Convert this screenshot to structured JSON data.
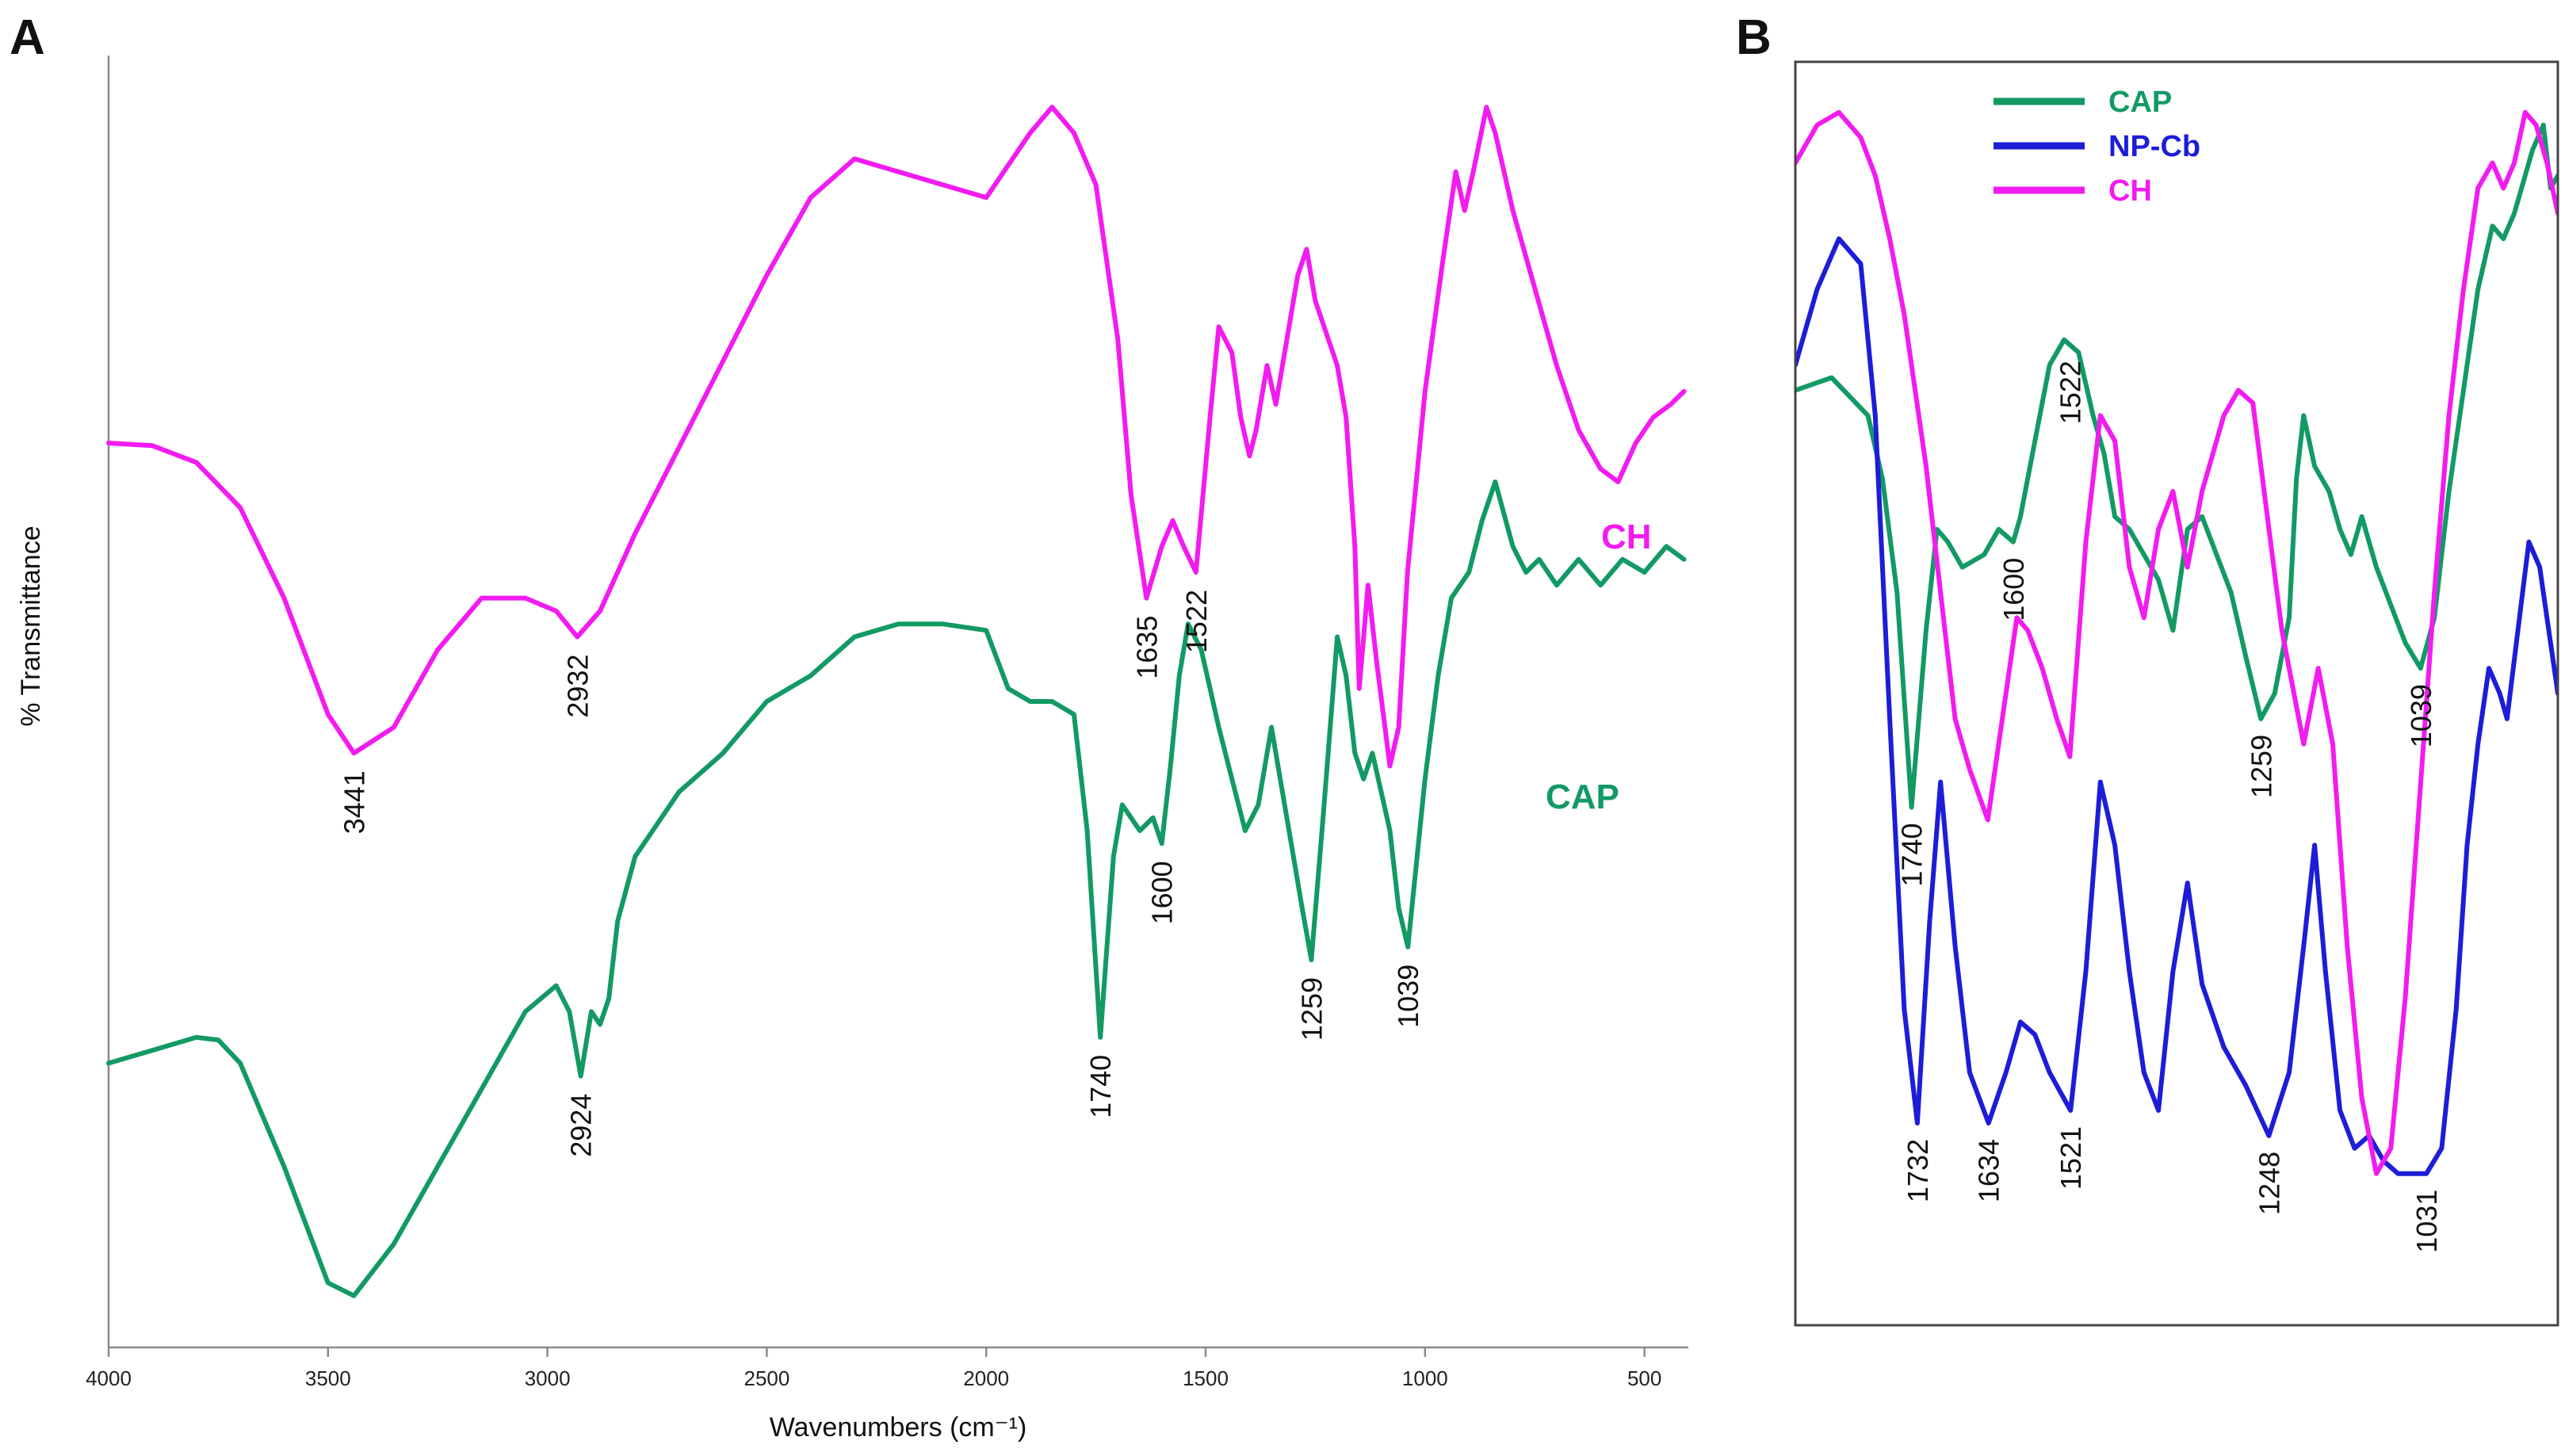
{
  "chart_data": [
    {
      "panel": "A",
      "type": "line",
      "title": "",
      "xlabel": "Wavenumbers (cm⁻¹)",
      "ylabel": "% Transmittance",
      "xlim": [
        4000,
        400
      ],
      "x_reversed": true,
      "xticks": [
        4000,
        3500,
        3000,
        2500,
        2000,
        1500,
        1000,
        500
      ],
      "xtick_labels": [
        "4000",
        "3500",
        "3000",
        "2500",
        "2000",
        "1500",
        "1000",
        "500"
      ],
      "ylim": [
        0,
        100
      ],
      "grid": false,
      "series": [
        {
          "name": "CH",
          "label": "CH",
          "color": "#f21bf0",
          "x": [
            4000,
            3900,
            3800,
            3700,
            3600,
            3500,
            3441,
            3350,
            3250,
            3150,
            3050,
            2980,
            2932,
            2880,
            2800,
            2650,
            2500,
            2400,
            2300,
            2200,
            2100,
            2000,
            1900,
            1850,
            1800,
            1750,
            1700,
            1670,
            1635,
            1600,
            1575,
            1550,
            1522,
            1490,
            1470,
            1440,
            1420,
            1400,
            1385,
            1360,
            1340,
            1320,
            1290,
            1270,
            1250,
            1230,
            1200,
            1180,
            1160,
            1150,
            1130,
            1110,
            1080,
            1060,
            1040,
            1000,
            960,
            930,
            910,
            890,
            860,
            840,
            800,
            750,
            700,
            650,
            600,
            560,
            520,
            480,
            440,
            410
          ],
          "values": [
            70,
            69.8,
            68.5,
            65,
            58,
            49,
            46,
            48,
            54,
            58,
            58,
            57,
            55,
            57,
            63,
            73,
            83,
            89,
            92,
            91,
            90,
            89,
            94,
            96,
            94,
            90,
            78,
            66,
            58,
            62,
            64,
            62,
            60,
            72,
            79,
            77,
            72,
            69,
            71,
            76,
            73,
            77,
            83,
            85,
            81,
            79,
            76,
            72,
            62,
            51,
            59,
            53,
            45,
            48,
            60,
            74,
            84,
            91,
            88,
            91,
            96,
            94,
            88,
            82,
            76,
            71,
            68,
            67,
            70,
            72,
            73,
            74
          ],
          "peak_labels": [
            {
              "x": 3441,
              "label": "3441"
            },
            {
              "x": 2932,
              "label": "2932"
            },
            {
              "x": 1635,
              "label": "1635"
            },
            {
              "x": 1522,
              "label": "1522"
            }
          ]
        },
        {
          "name": "CAP",
          "label": "CAP",
          "color": "#139a64",
          "x": [
            4000,
            3900,
            3800,
            3750,
            3700,
            3600,
            3500,
            3441,
            3350,
            3250,
            3150,
            3050,
            2980,
            2950,
            2924,
            2900,
            2880,
            2860,
            2840,
            2800,
            2700,
            2600,
            2500,
            2400,
            2300,
            2200,
            2100,
            2000,
            1950,
            1900,
            1850,
            1800,
            1770,
            1740,
            1710,
            1690,
            1650,
            1620,
            1600,
            1580,
            1560,
            1540,
            1510,
            1490,
            1470,
            1440,
            1410,
            1380,
            1350,
            1330,
            1300,
            1280,
            1259,
            1230,
            1200,
            1180,
            1160,
            1140,
            1120,
            1100,
            1080,
            1060,
            1039,
            1000,
            970,
            940,
            900,
            870,
            840,
            800,
            770,
            740,
            700,
            650,
            600,
            550,
            500,
            450,
            410
          ],
          "values": [
            22,
            23,
            24,
            23.8,
            22,
            14,
            5,
            4,
            8,
            14,
            20,
            26,
            28,
            26,
            21,
            26,
            25,
            27,
            33,
            38,
            43,
            46,
            50,
            52,
            55,
            56,
            56,
            55.5,
            51,
            50,
            50,
            49,
            40,
            24,
            38,
            42,
            40,
            41,
            39,
            45,
            52,
            56,
            54,
            51,
            48,
            44,
            40,
            42,
            48,
            44,
            38,
            34,
            30,
            42,
            55,
            52,
            46,
            44,
            46,
            43,
            40,
            34,
            31,
            44,
            52,
            58,
            60,
            64,
            67,
            62,
            60,
            61,
            59,
            61,
            59,
            61,
            60,
            62,
            61
          ],
          "peak_labels": [
            {
              "x": 2924,
              "label": "2924"
            },
            {
              "x": 1740,
              "label": "1740"
            },
            {
              "x": 1600,
              "label": "1600"
            },
            {
              "x": 1259,
              "label": "1259"
            },
            {
              "x": 1039,
              "label": "1039"
            }
          ]
        }
      ]
    },
    {
      "panel": "B",
      "type": "line",
      "title": "",
      "xlabel": "",
      "ylabel": "",
      "xlim": [
        1900,
        850
      ],
      "x_reversed": true,
      "ylim": [
        0,
        100
      ],
      "grid": false,
      "legend_position": "top-center",
      "series": [
        {
          "name": "CAP",
          "label": "CAP",
          "color": "#139a64",
          "x": [
            1900,
            1850,
            1800,
            1780,
            1760,
            1740,
            1720,
            1705,
            1690,
            1670,
            1640,
            1620,
            1600,
            1590,
            1570,
            1550,
            1530,
            1510,
            1490,
            1475,
            1460,
            1440,
            1420,
            1400,
            1380,
            1360,
            1340,
            1300,
            1280,
            1259,
            1240,
            1220,
            1210,
            1200,
            1185,
            1165,
            1150,
            1135,
            1120,
            1100,
            1080,
            1060,
            1039,
            1020,
            1000,
            980,
            960,
            940,
            925,
            910,
            900,
            885,
            870,
            860,
            850
          ],
          "values": [
            74,
            75,
            72,
            67,
            58,
            41,
            55,
            63,
            62,
            60,
            61,
            63,
            62,
            64,
            70,
            76,
            78,
            77,
            72,
            69,
            64,
            63,
            61,
            59,
            55,
            63,
            64,
            58,
            53,
            48,
            50,
            56,
            67,
            72,
            68,
            66,
            63,
            61,
            64,
            60,
            57,
            54,
            52,
            56,
            66,
            74,
            82,
            87,
            86,
            88,
            90,
            93,
            95,
            90,
            91
          ],
          "peak_labels": [
            {
              "x": 1740,
              "label": "1740"
            },
            {
              "x": 1600,
              "label": "1600"
            },
            {
              "x": 1522,
              "label": "1522"
            },
            {
              "x": 1259,
              "label": "1259"
            },
            {
              "x": 1039,
              "label": "1039"
            }
          ]
        },
        {
          "name": "NP-Cb",
          "label": "NP-Cb",
          "color": "#1d1dd8",
          "x": [
            1900,
            1870,
            1840,
            1810,
            1790,
            1770,
            1750,
            1732,
            1715,
            1700,
            1680,
            1660,
            1634,
            1610,
            1590,
            1570,
            1550,
            1521,
            1500,
            1480,
            1460,
            1440,
            1420,
            1400,
            1380,
            1360,
            1340,
            1310,
            1280,
            1248,
            1220,
            1200,
            1185,
            1170,
            1150,
            1130,
            1110,
            1090,
            1070,
            1050,
            1031,
            1010,
            990,
            975,
            960,
            945,
            930,
            920,
            905,
            890,
            875,
            860,
            850
          ],
          "values": [
            76,
            82,
            86,
            84,
            72,
            48,
            25,
            16,
            32,
            43,
            30,
            20,
            16,
            20,
            24,
            23,
            20,
            17,
            28,
            43,
            38,
            28,
            20,
            17,
            28,
            35,
            27,
            22,
            19,
            15,
            20,
            30,
            38,
            28,
            17,
            14,
            15,
            13,
            12,
            12,
            12,
            14,
            25,
            38,
            46,
            52,
            50,
            48,
            55,
            62,
            60,
            54,
            50
          ],
          "peak_labels": [
            {
              "x": 1732,
              "label": "1732"
            },
            {
              "x": 1634,
              "label": "1634"
            },
            {
              "x": 1521,
              "label": "1521"
            },
            {
              "x": 1248,
              "label": "1248"
            },
            {
              "x": 1031,
              "label": "1031"
            }
          ]
        },
        {
          "name": "CH",
          "label": "CH",
          "color": "#f21bf0",
          "x": [
            1900,
            1870,
            1840,
            1810,
            1790,
            1770,
            1750,
            1720,
            1700,
            1680,
            1660,
            1635,
            1615,
            1595,
            1580,
            1560,
            1540,
            1522,
            1500,
            1480,
            1460,
            1440,
            1420,
            1400,
            1380,
            1360,
            1340,
            1310,
            1290,
            1270,
            1250,
            1230,
            1200,
            1180,
            1160,
            1140,
            1120,
            1100,
            1080,
            1060,
            1040,
            1020,
            1000,
            980,
            960,
            940,
            925,
            910,
            895,
            880,
            865,
            850
          ],
          "values": [
            92,
            95,
            96,
            94,
            91,
            86,
            80,
            68,
            58,
            48,
            44,
            40,
            48,
            56,
            55,
            52,
            48,
            45,
            62,
            72,
            70,
            60,
            56,
            63,
            66,
            60,
            66,
            72,
            74,
            73,
            64,
            55,
            46,
            52,
            46,
            30,
            18,
            12,
            14,
            26,
            42,
            58,
            72,
            82,
            90,
            92,
            90,
            92,
            96,
            95,
            92,
            88
          ],
          "peak_labels": []
        }
      ]
    }
  ],
  "panel_letters": {
    "a": "A",
    "b": "B"
  }
}
